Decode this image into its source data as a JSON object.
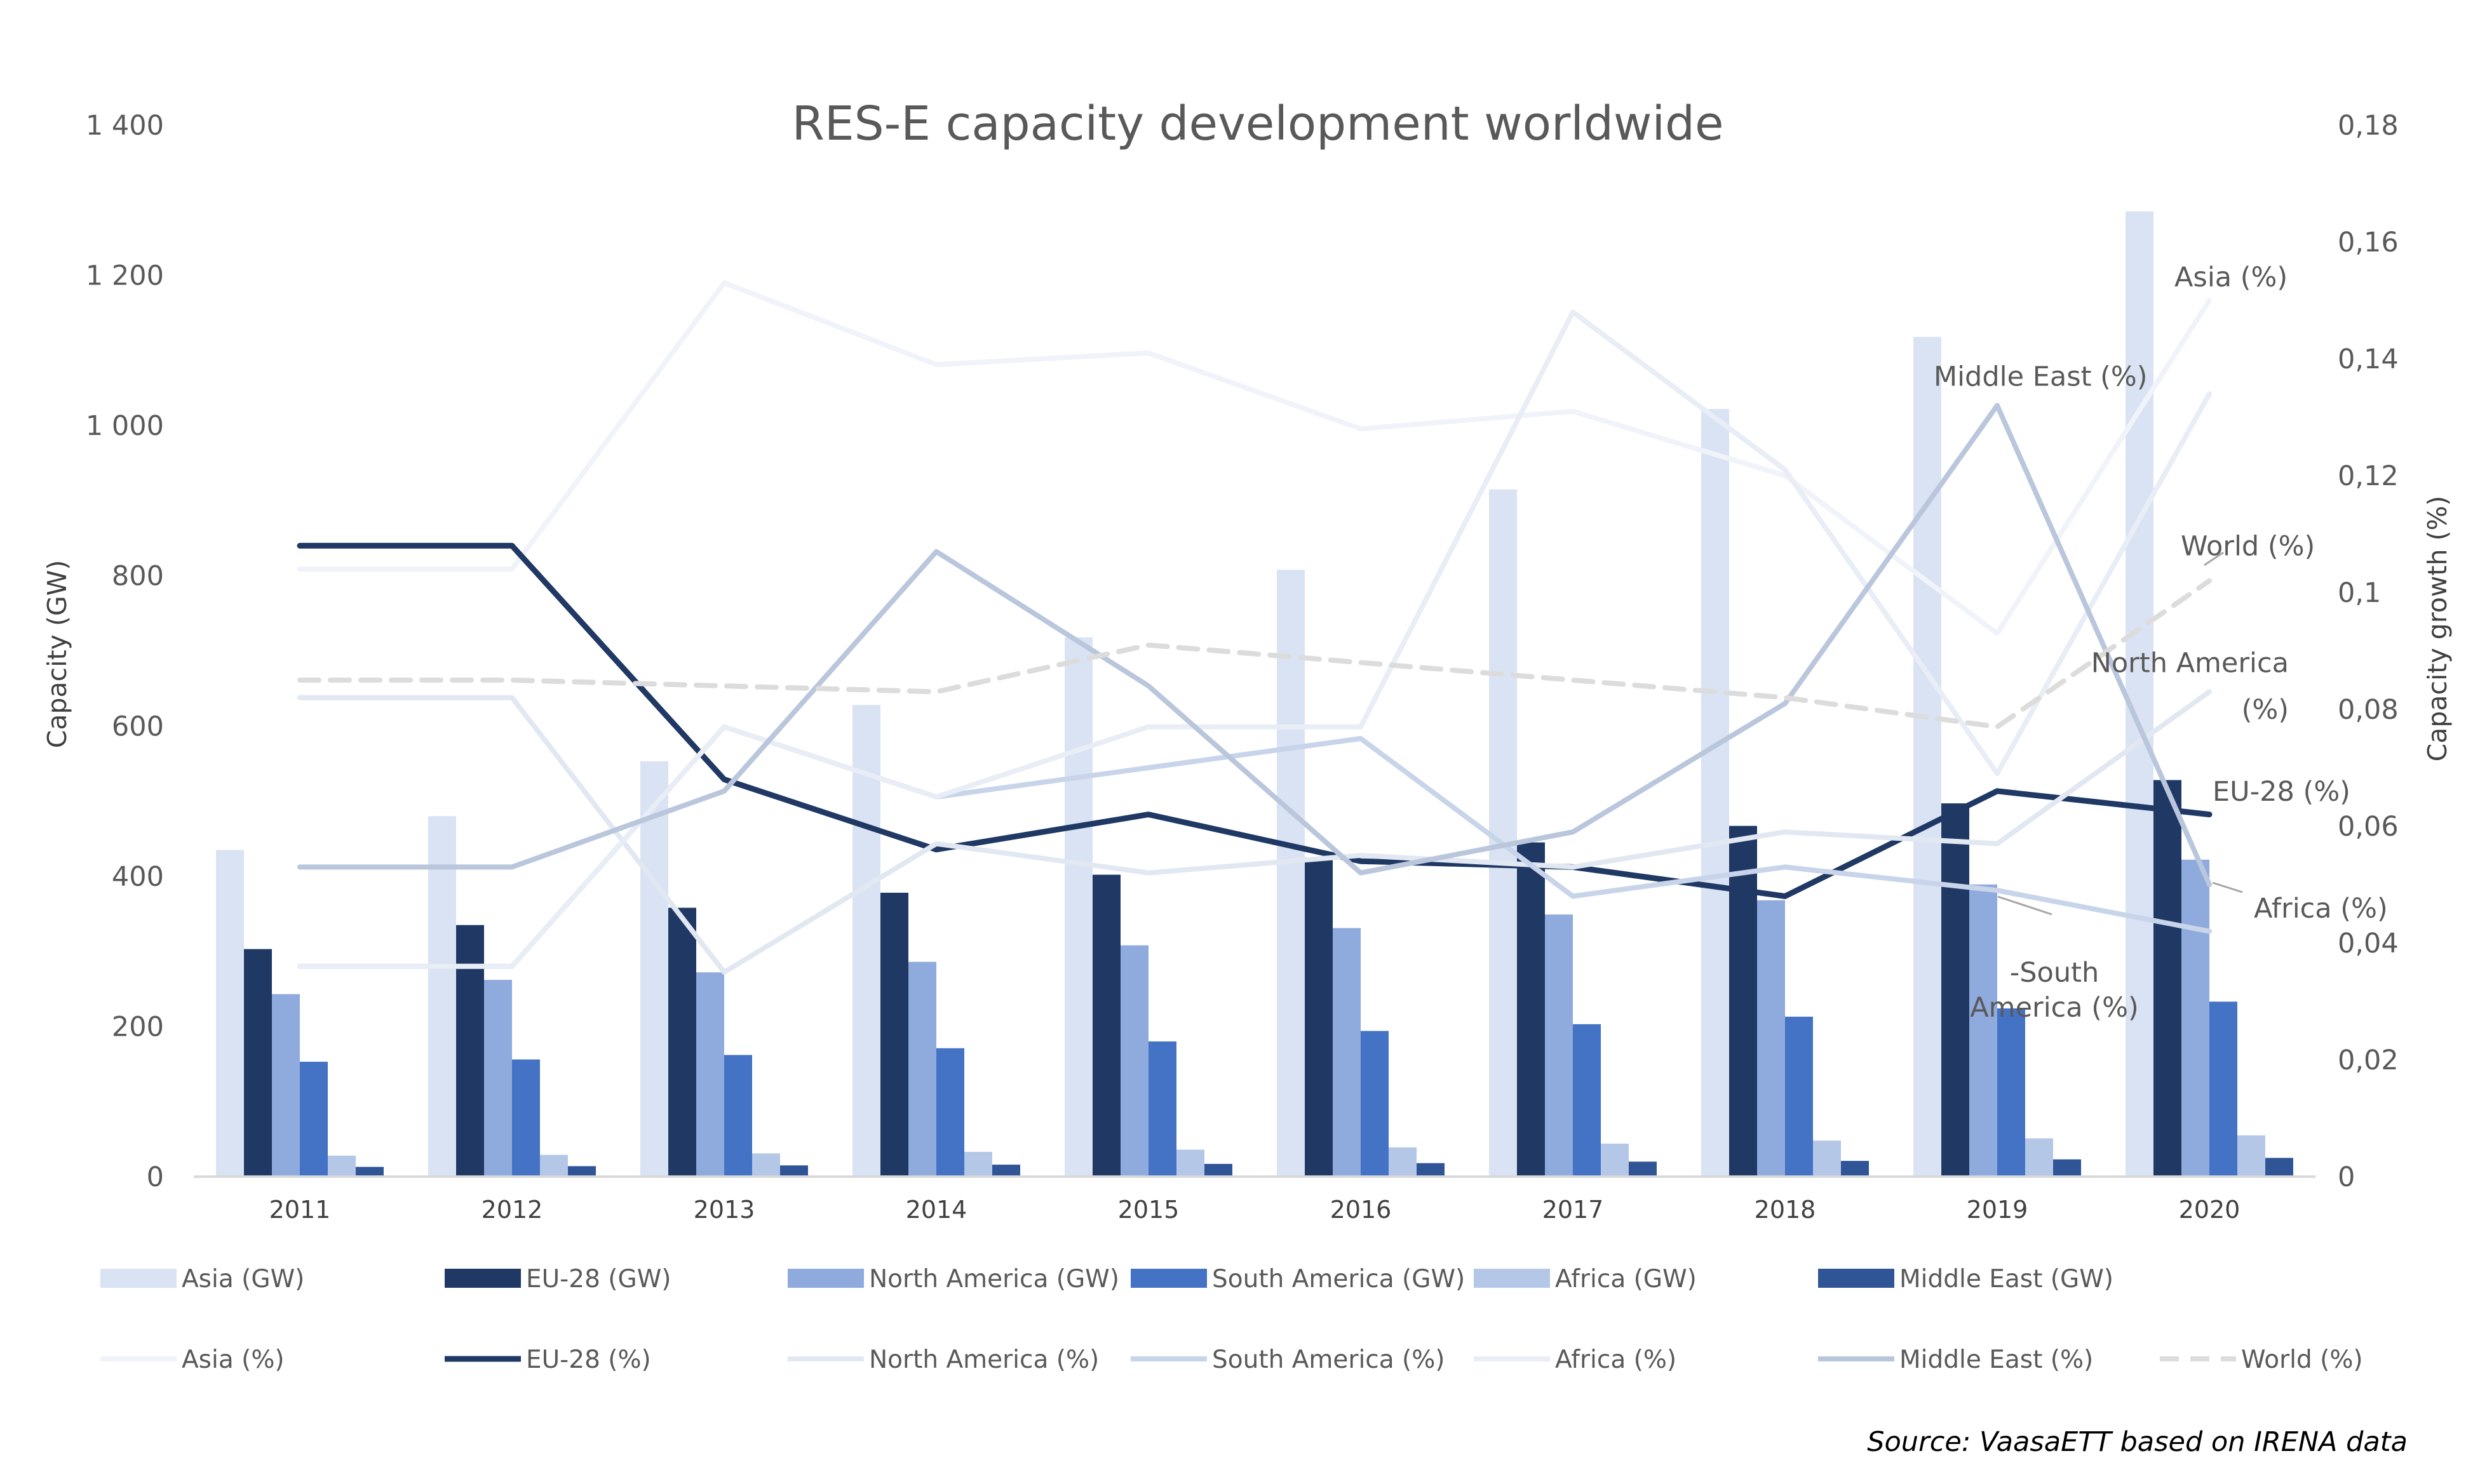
{
  "chart_data": {
    "type": "bar+line",
    "title": "RES-E capacity development worldwide",
    "ylabel": "Capacity (GW)",
    "y2label": "Capacity growth (%)",
    "ylim": [
      0,
      1400
    ],
    "y2lim": [
      0,
      0.18
    ],
    "yticks": [
      "0",
      "200",
      "400",
      "600",
      "800",
      "1 000",
      "1 200",
      "1 400"
    ],
    "y2ticks": [
      "0",
      "0,02",
      "0,04",
      "0,06",
      "0,08",
      "0,1",
      "0,12",
      "0,14",
      "0,16",
      "0,18"
    ],
    "categories": [
      "2011",
      "2012",
      "2013",
      "2014",
      "2015",
      "2016",
      "2017",
      "2018",
      "2019",
      "2020"
    ],
    "bar_series": [
      {
        "name": "Asia (GW)",
        "color": "#dae3f3",
        "values": [
          435,
          480,
          553,
          628,
          718,
          808,
          915,
          1022,
          1118,
          1285
        ]
      },
      {
        "name": "EU-28 (GW)",
        "color": "#1f3864",
        "values": [
          303,
          335,
          358,
          378,
          402,
          425,
          445,
          467,
          497,
          528
        ]
      },
      {
        "name": "North America (GW)",
        "color": "#8faadc",
        "values": [
          243,
          262,
          272,
          286,
          308,
          331,
          349,
          368,
          389,
          422
        ]
      },
      {
        "name": "South America (GW)",
        "color": "#4472c4",
        "values": [
          153,
          156,
          162,
          171,
          180,
          194,
          203,
          213,
          224,
          233
        ]
      },
      {
        "name": "Africa (GW)",
        "color": "#b4c7e7",
        "values": [
          28,
          29,
          31,
          33,
          36,
          39,
          44,
          48,
          51,
          55
        ]
      },
      {
        "name": "Middle East (GW)",
        "color": "#2f5597",
        "values": [
          13,
          14,
          15,
          16,
          17,
          18,
          20,
          21,
          23,
          25
        ]
      }
    ],
    "line_series": [
      {
        "name": "Asia (%)",
        "color": "#f0f3f9",
        "width": 8,
        "dash": "",
        "values": [
          0.104,
          0.104,
          0.153,
          0.139,
          0.141,
          0.128,
          0.131,
          0.12,
          0.093,
          0.15
        ]
      },
      {
        "name": "EU-28 (%)",
        "color": "#1f3864",
        "width": 9,
        "dash": "",
        "values": [
          0.108,
          0.108,
          0.068,
          0.056,
          0.062,
          0.054,
          0.053,
          0.048,
          0.066,
          0.062
        ]
      },
      {
        "name": "North America (%)",
        "color": "#e2e8f2",
        "width": 8,
        "dash": "",
        "values": [
          0.082,
          0.082,
          0.035,
          0.057,
          0.052,
          0.055,
          0.053,
          0.059,
          0.057,
          0.083
        ]
      },
      {
        "name": "South America (%)",
        "color": "#c8d4ea",
        "width": 8,
        "dash": "",
        "values": [
          0.036,
          0.036,
          0.077,
          0.065,
          0.07,
          0.075,
          0.048,
          0.053,
          0.049,
          0.042
        ]
      },
      {
        "name": "Africa (%)",
        "color": "#e8edf6",
        "width": 8,
        "dash": "",
        "values": [
          0.036,
          0.036,
          0.077,
          0.065,
          0.077,
          0.077,
          0.148,
          0.121,
          0.069,
          0.134
        ]
      },
      {
        "name": "Middle East (%)",
        "color": "#b9c6dc",
        "width": 8,
        "dash": "",
        "values": [
          0.053,
          0.053,
          0.066,
          0.107,
          0.084,
          0.052,
          0.059,
          0.081,
          0.132,
          0.05
        ]
      },
      {
        "name": "World (%)",
        "color": "#dcdcdc",
        "width": 8,
        "dash": "30 18",
        "values": [
          0.085,
          0.085,
          0.084,
          0.083,
          0.091,
          0.088,
          0.085,
          0.082,
          0.077,
          0.102
        ]
      }
    ],
    "line_labels": [
      {
        "text": "Asia (%)",
        "anchor": "start",
        "cat": 9,
        "value": 0.154,
        "dx": -55,
        "dy": 0
      },
      {
        "text": "Middle East (%)",
        "anchor": "start",
        "cat": 8,
        "value": 0.137,
        "dx": -100,
        "dy": 0
      },
      {
        "text": "World (%)",
        "anchor": "start",
        "cat": 9,
        "value": 0.108,
        "dx": -45,
        "dy": 0
      },
      {
        "text": "North America",
        "anchor": "end",
        "cat": 9,
        "value": 0.088,
        "dx": 125,
        "dy": 0
      },
      {
        "text": "(%)",
        "anchor": "end",
        "cat": 9,
        "value": 0.08,
        "dx": 125,
        "dy": 0
      },
      {
        "text": "EU-28 (%)",
        "anchor": "start",
        "cat": 9,
        "value": 0.066,
        "dx": 5,
        "dy": 0
      },
      {
        "text": "Africa (%)",
        "anchor": "start",
        "cat": 9,
        "value": 0.046,
        "dx": 70,
        "dy": 0
      },
      {
        "text": "-South",
        "anchor": "middle",
        "cat": 8,
        "value": 0.035,
        "dx": 90,
        "dy": 0
      },
      {
        "text": "America (%)",
        "anchor": "middle",
        "cat": 8,
        "value": 0.029,
        "dx": 90,
        "dy": 0
      }
    ],
    "legend": {
      "placement": "bottom",
      "rows": 2
    },
    "grid": false
  },
  "source": "Source: VaasaETT based on IRENA data"
}
